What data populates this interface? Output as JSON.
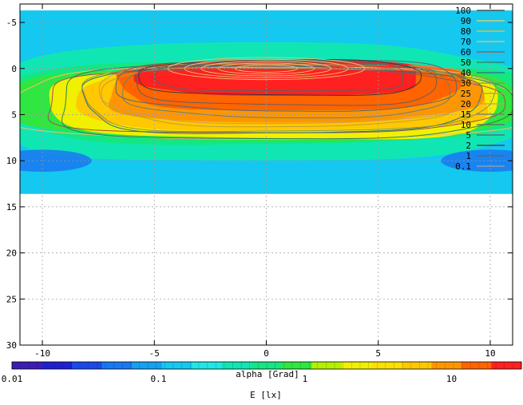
{
  "chart_data": {
    "type": "heatmap",
    "subtype": "filled-contour",
    "x_axis": {
      "range": [
        -11,
        11
      ],
      "ticks": [
        -10,
        -5,
        0,
        5,
        10
      ],
      "tick_labels": [
        "-10",
        "-5",
        "0",
        "5",
        "10"
      ],
      "grid": true,
      "label": "alpha [Grad]"
    },
    "y_axis": {
      "range": [
        -7,
        30
      ],
      "reversed": true,
      "ticks": [
        -5,
        0,
        5,
        10,
        15,
        20,
        25,
        30
      ],
      "tick_labels": [
        "-5",
        "0",
        "5",
        "10",
        "15",
        "20",
        "25",
        "30"
      ],
      "grid": true
    },
    "data_extent": {
      "x": [
        -11,
        11
      ],
      "y": [
        -6.3,
        13.6
      ]
    },
    "contour_levels": [
      "100",
      "90",
      "80",
      "70",
      "60",
      "50",
      "40",
      "30",
      "25",
      "20",
      "15",
      "10",
      "5",
      "2",
      "1",
      "0.1"
    ],
    "contour_colors": [
      "#3a3a3a",
      "#e4d860",
      "#f4c030",
      "#f0c070",
      "#a05050",
      "#2a8060",
      "#2a7080",
      "#8a9050",
      "#c0a030",
      "#d09860",
      "#6a8070",
      "#5a6870",
      "#606060",
      "#3a3a3a",
      "#606060",
      "#a0a0a0"
    ],
    "colorbar": {
      "scale": "log",
      "range": [
        0.01,
        30
      ],
      "tick_labels": [
        "0.01",
        "0.1",
        "1",
        "10"
      ],
      "tick_values": [
        0.01,
        0.1,
        1,
        10
      ],
      "label": "E [lx]",
      "colors": [
        "#3c1eb4",
        "#2020d0",
        "#1b49e8",
        "#1a78f0",
        "#16a0f0",
        "#14c8f0",
        "#20e6e6",
        "#10e6b4",
        "#14e682",
        "#30e640",
        "#b4f000",
        "#f0f000",
        "#fce000",
        "#ffc800",
        "#ff9600",
        "#ff6400",
        "#ff2020"
      ]
    },
    "fill_colors": [
      "#1a78f0",
      "#14c8f0",
      "#10e6b4",
      "#14e682",
      "#30e640",
      "#f0f000",
      "#ffc800",
      "#ff9600",
      "#ff6400",
      "#ff2020"
    ],
    "regions": [
      {
        "level": 1,
        "color": "#14c8f0",
        "center": [
          0,
          3.5
        ],
        "rx": 12,
        "ry": 10.1
      },
      {
        "level": 2,
        "color": "#10e6b4",
        "center": [
          0,
          3.7
        ],
        "rx": 12,
        "ry": 6.4
      },
      {
        "level": 3,
        "color": "#14e682",
        "center": [
          0,
          3.7
        ],
        "rx": 12,
        "ry": 4.4
      },
      {
        "level": 4,
        "color": "#30e640",
        "center": [
          0,
          3.8
        ],
        "rx": 11.5,
        "ry": 3.9
      },
      {
        "level": 5,
        "color": "#f0f000",
        "center": [
          0.5,
          3.6
        ],
        "rx": 10,
        "ry": 4.1
      },
      {
        "level": 6,
        "color": "#ffc800",
        "center": [
          0.8,
          3.2
        ],
        "rx": 9.1,
        "ry": 3.6
      },
      {
        "level": 7,
        "color": "#ff9600",
        "center": [
          1,
          2.6
        ],
        "rx": 8.3,
        "ry": 3.2
      },
      {
        "level": 8,
        "color": "#ff6400",
        "center": [
          1,
          1.8
        ],
        "rx": 7.6,
        "ry": 2.7
      },
      {
        "level": 9,
        "color": "#ff2020",
        "center": [
          0.7,
          1
        ],
        "rx": 6.3,
        "ry": 1.9
      }
    ],
    "blue_patches": [
      {
        "color": "#1a78f0",
        "center": [
          -10,
          10
        ],
        "rx": 2.2,
        "ry": 1.2
      },
      {
        "color": "#1a78f0",
        "center": [
          10,
          10
        ],
        "rx": 2.2,
        "ry": 1.2
      }
    ]
  }
}
